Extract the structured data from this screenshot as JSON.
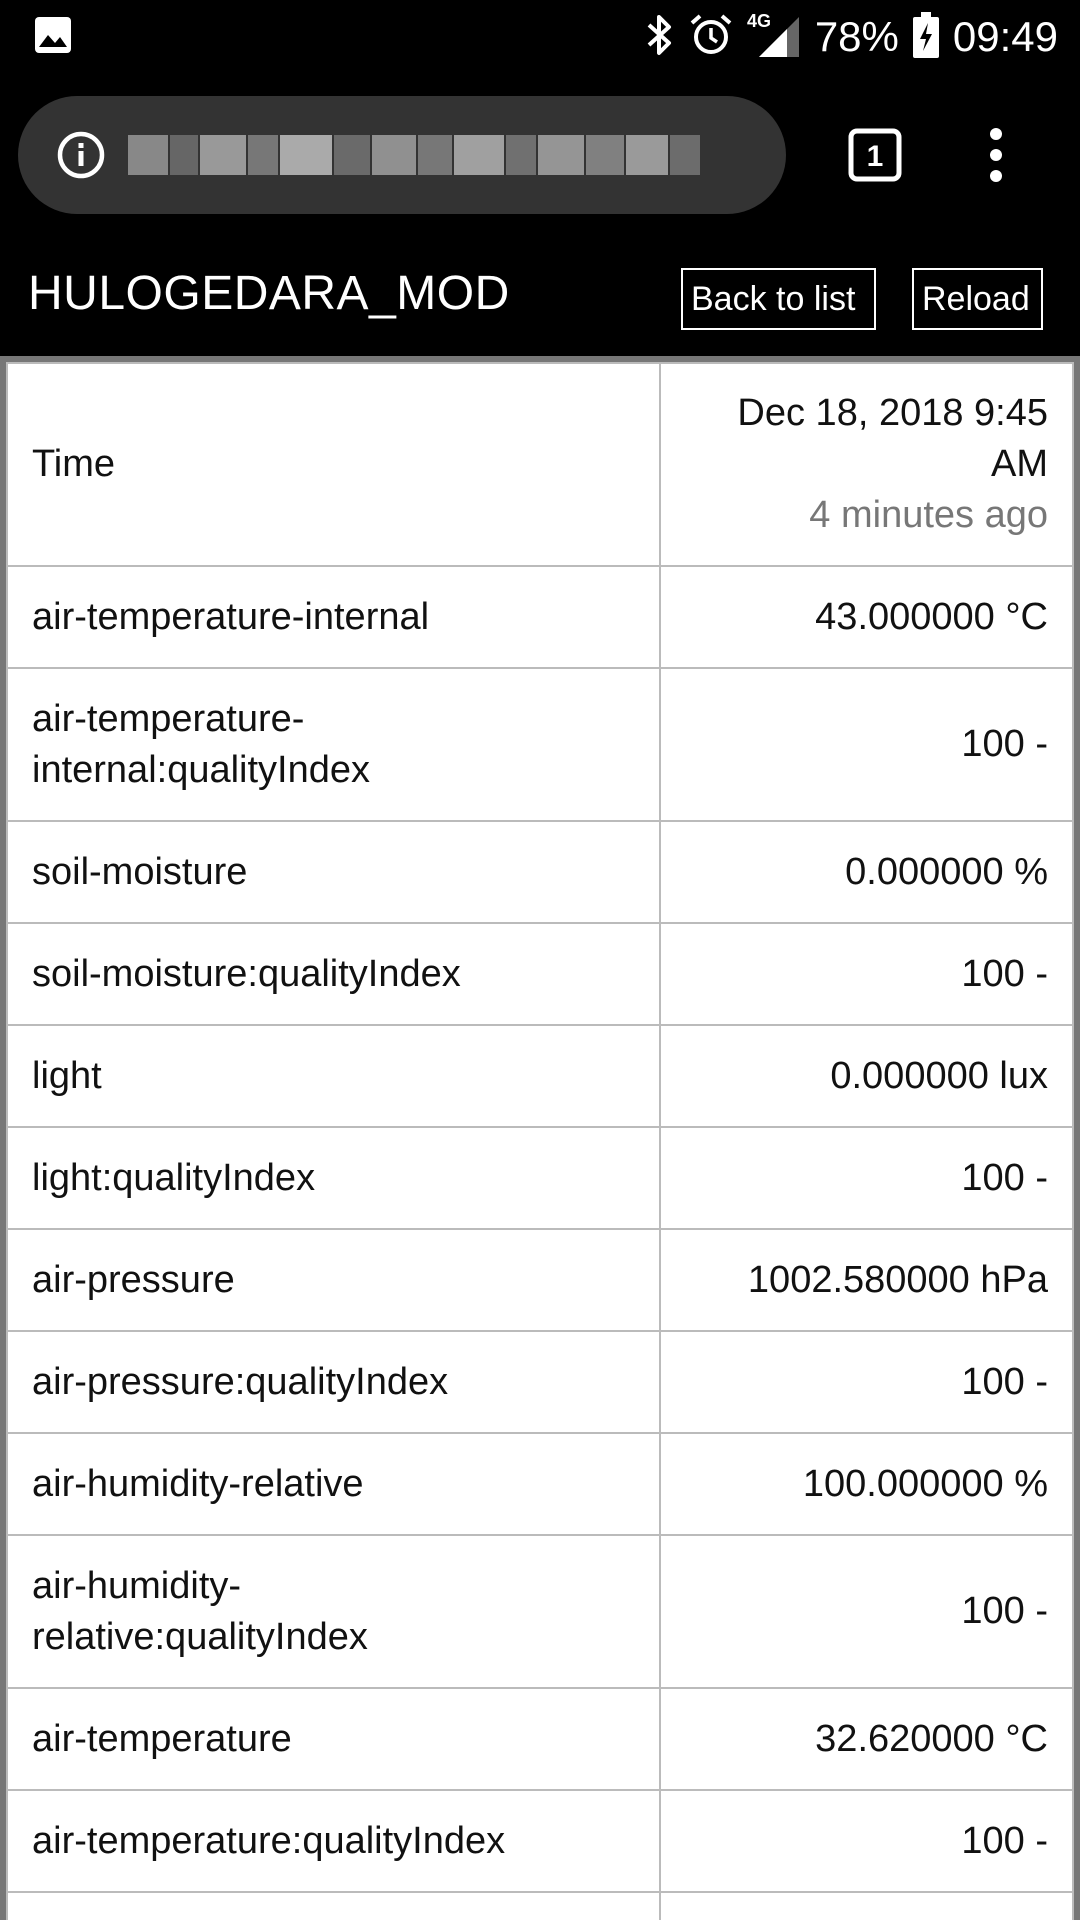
{
  "status_bar": {
    "battery": "78%",
    "time": "09:49",
    "network": "4G",
    "icons": [
      "image-icon",
      "bluetooth-icon",
      "alarm-icon",
      "signal-icon",
      "battery-charging-icon"
    ]
  },
  "browser": {
    "tab_count": "1",
    "url_obscured": true
  },
  "header": {
    "title": "HULOGEDARA_MOD",
    "back_label": "Back to list",
    "reload_label": "Reload"
  },
  "table": {
    "time_label": "Time",
    "time_value_line1": "Dec 18, 2018 9:45",
    "time_value_line2": "AM",
    "time_relative": "4 minutes ago",
    "rows": [
      {
        "key": "air-temperature-internal",
        "value": "43.000000 °C"
      },
      {
        "key_line1": "air-temperature-",
        "key_line2": "internal:qualityIndex",
        "value": "100 -"
      },
      {
        "key": "soil-moisture",
        "value": "0.000000 %"
      },
      {
        "key": "soil-moisture:qualityIndex",
        "value": "100 -"
      },
      {
        "key": "light",
        "value": "0.000000 lux"
      },
      {
        "key": "light:qualityIndex",
        "value": "100 -"
      },
      {
        "key": "air-pressure",
        "value": "1002.580000 hPa"
      },
      {
        "key": "air-pressure:qualityIndex",
        "value": "100 -"
      },
      {
        "key": "air-humidity-relative",
        "value": "100.000000 %"
      },
      {
        "key_line1": "air-humidity-",
        "key_line2": "relative:qualityIndex",
        "value": "100 -"
      },
      {
        "key": "air-temperature",
        "value": "32.620000 °C"
      },
      {
        "key": "air-temperature:qualityIndex",
        "value": "100 -"
      }
    ]
  }
}
